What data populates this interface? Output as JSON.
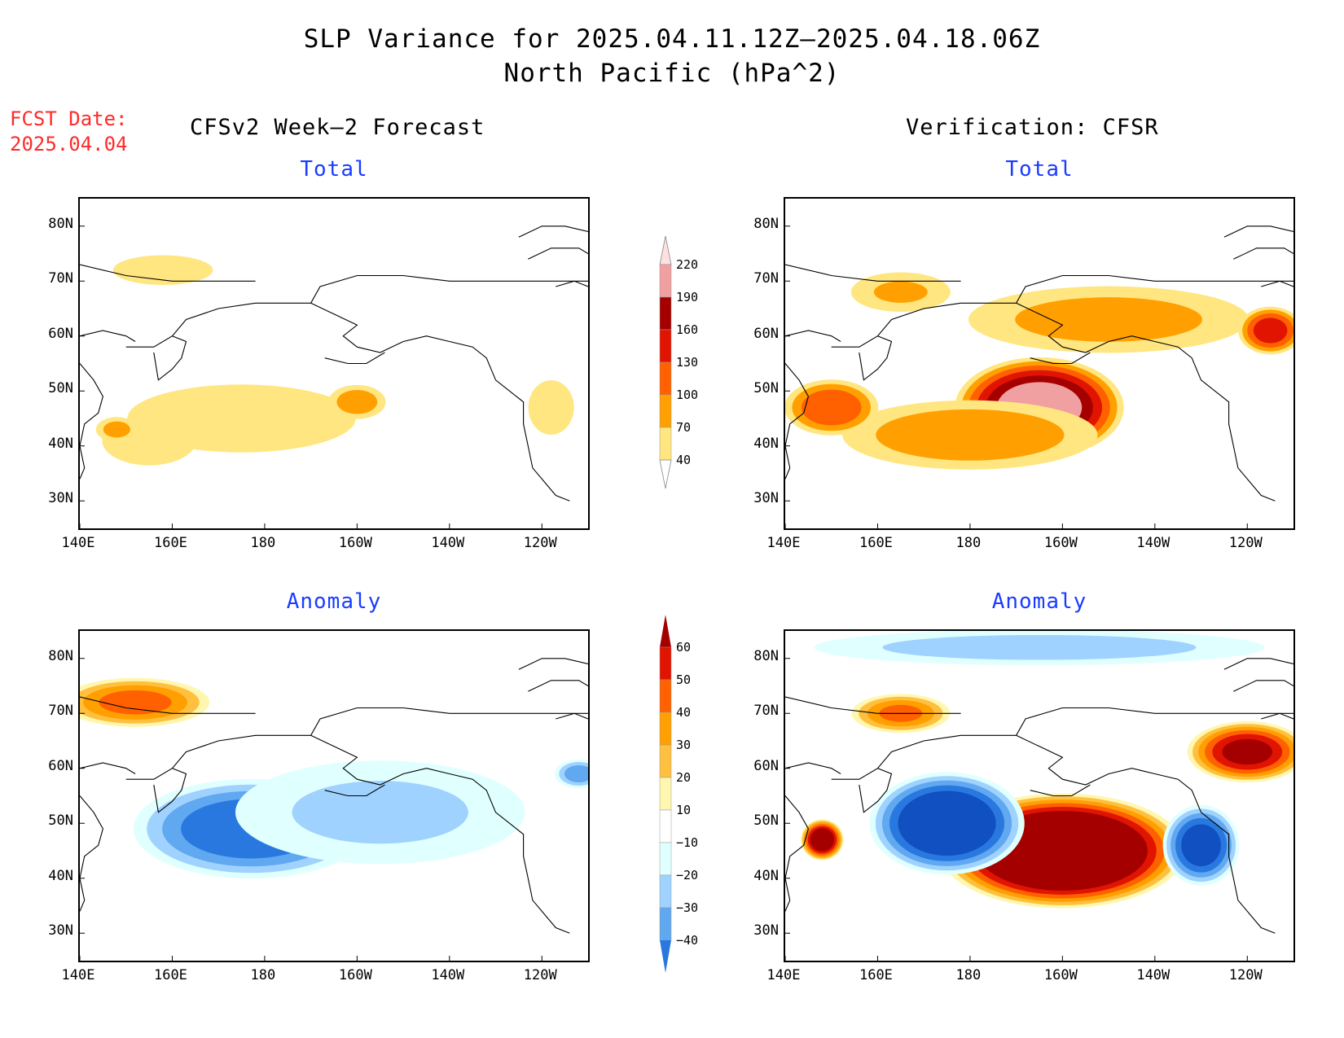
{
  "title_line1": "SLP Variance for 2025.04.11.12Z—2025.04.18.06Z",
  "title_line2": "North Pacific (hPa^2)",
  "fcst_label": "FCST Date:",
  "fcst_date": "2025.04.04",
  "left_header": "CFSv2 Week—2 Forecast",
  "right_header": "Verification: CFSR",
  "colors": {
    "total": [
      "#ffe680",
      "#ffa000",
      "#ff6000",
      "#e01400",
      "#a50000",
      "#f0a0a0",
      "#ffe0e0"
    ],
    "anomaly_pos": [
      "#fff7b0",
      "#ffc040",
      "#ffa000",
      "#ff6000",
      "#e01400",
      "#a50000"
    ],
    "anomaly_neg": [
      "#e0ffff",
      "#a0d2ff",
      "#60a8f0",
      "#2878e0",
      "#1050c0"
    ],
    "coast": "#000000"
  },
  "chart_data": [
    {
      "type": "heatmap",
      "panel": "forecast-total",
      "subtitle": "Total",
      "xticks": [
        "140E",
        "160E",
        "180",
        "160W",
        "140W",
        "120W"
      ],
      "yticks": [
        "80N",
        "70N",
        "60N",
        "50N",
        "40N",
        "30N"
      ],
      "xlim": [
        140,
        250
      ],
      "ylim": [
        25,
        85
      ],
      "levels": [
        40,
        70,
        100,
        130,
        160,
        190,
        220
      ],
      "blobs": [
        {
          "lon": 175,
          "lat": 45,
          "rlon": 40,
          "rlat": 10,
          "value": 55
        },
        {
          "lon": 155,
          "lat": 41,
          "rlon": 18,
          "rlat": 8,
          "value": 50
        },
        {
          "lon": 148,
          "lat": 43,
          "rlon": 6,
          "rlat": 3,
          "value": 78
        },
        {
          "lon": 200,
          "lat": 48,
          "rlon": 8,
          "rlat": 4,
          "value": 85
        },
        {
          "lon": 158,
          "lat": 72,
          "rlon": 20,
          "rlat": 5,
          "value": 48
        },
        {
          "lon": 242,
          "lat": 47,
          "rlon": 8,
          "rlat": 8,
          "value": 55
        }
      ]
    },
    {
      "type": "heatmap",
      "panel": "verification-total",
      "subtitle": "Total",
      "xticks": [
        "140E",
        "160E",
        "180",
        "160W",
        "140W",
        "120W"
      ],
      "yticks": [
        "80N",
        "70N",
        "60N",
        "50N",
        "40N",
        "30N"
      ],
      "xlim": [
        140,
        250
      ],
      "ylim": [
        25,
        85
      ],
      "levels": [
        40,
        70,
        100,
        130,
        160,
        190,
        220
      ],
      "blobs": [
        {
          "lon": 195,
          "lat": 47,
          "rlon": 20,
          "rlat": 10,
          "value": 205
        },
        {
          "lon": 180,
          "lat": 42,
          "rlon": 35,
          "rlat": 8,
          "value": 90
        },
        {
          "lon": 150,
          "lat": 47,
          "rlon": 12,
          "rlat": 6,
          "value": 120
        },
        {
          "lon": 210,
          "lat": 63,
          "rlon": 40,
          "rlat": 8,
          "value": 80
        },
        {
          "lon": 245,
          "lat": 61,
          "rlon": 8,
          "rlat": 5,
          "value": 140
        },
        {
          "lon": 165,
          "lat": 68,
          "rlon": 15,
          "rlat": 5,
          "value": 70
        }
      ]
    },
    {
      "type": "heatmap",
      "panel": "forecast-anomaly",
      "subtitle": "Anomaly",
      "xticks": [
        "140E",
        "160E",
        "180",
        "160W",
        "140W",
        "120W"
      ],
      "yticks": [
        "80N",
        "70N",
        "60N",
        "50N",
        "40N",
        "30N"
      ],
      "xlim": [
        140,
        250
      ],
      "ylim": [
        25,
        85
      ],
      "levels": [
        -40,
        -30,
        -20,
        -10,
        10,
        20,
        30,
        40,
        50,
        60
      ],
      "blobs": [
        {
          "lon": 177,
          "lat": 49,
          "rlon": 28,
          "rlat": 10,
          "value": -48
        },
        {
          "lon": 205,
          "lat": 52,
          "rlon": 40,
          "rlat": 12,
          "value": -22
        },
        {
          "lon": 248,
          "lat": 59,
          "rlon": 6,
          "rlat": 3,
          "value": -35
        },
        {
          "lon": 152,
          "lat": 72,
          "rlon": 18,
          "rlat": 5,
          "value": 42
        }
      ]
    },
    {
      "type": "heatmap",
      "panel": "verification-anomaly",
      "subtitle": "Anomaly",
      "xticks": [
        "140E",
        "160E",
        "180",
        "160W",
        "140W",
        "120W"
      ],
      "yticks": [
        "80N",
        "70N",
        "60N",
        "50N",
        "40N",
        "30N"
      ],
      "xlim": [
        140,
        250
      ],
      "ylim": [
        25,
        85
      ],
      "levels": [
        -40,
        -30,
        -20,
        -10,
        10,
        20,
        30,
        40,
        50,
        60
      ],
      "blobs": [
        {
          "lon": 200,
          "lat": 45,
          "rlon": 28,
          "rlat": 11,
          "value": 90
        },
        {
          "lon": 175,
          "lat": 50,
          "rlon": 18,
          "rlat": 10,
          "value": -65
        },
        {
          "lon": 230,
          "lat": 46,
          "rlon": 9,
          "rlat": 8,
          "value": -55
        },
        {
          "lon": 195,
          "lat": 82,
          "rlon": 60,
          "rlat": 4,
          "value": -25
        },
        {
          "lon": 148,
          "lat": 47,
          "rlon": 5,
          "rlat": 4,
          "value": 70
        },
        {
          "lon": 165,
          "lat": 70,
          "rlon": 12,
          "rlat": 4,
          "value": 40
        },
        {
          "lon": 240,
          "lat": 63,
          "rlon": 14,
          "rlat": 6,
          "value": 60
        }
      ]
    }
  ],
  "colorbar_total": [
    "220",
    "190",
    "160",
    "130",
    "100",
    "70",
    "40"
  ],
  "colorbar_anomaly": [
    "60",
    "50",
    "40",
    "30",
    "20",
    "10",
    "−10",
    "−20",
    "−30",
    "−40"
  ]
}
